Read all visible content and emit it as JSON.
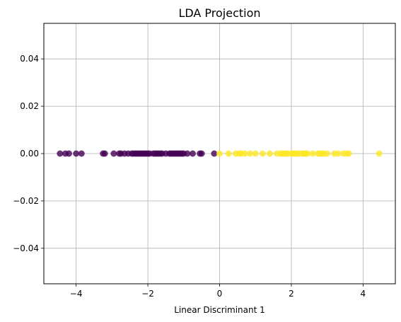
{
  "chart_data": {
    "type": "scatter",
    "title": "LDA Projection",
    "xlabel": "Linear Discriminant 1",
    "ylabel": "",
    "xlim": [
      -4.9,
      4.9
    ],
    "ylim": [
      -0.055,
      0.055
    ],
    "xticks": [
      -4,
      -2,
      0,
      2,
      4
    ],
    "xtick_labels": [
      "−4",
      "−2",
      "0",
      "2",
      "4"
    ],
    "yticks": [
      -0.04,
      -0.02,
      0.0,
      0.02,
      0.04
    ],
    "ytick_labels": [
      "−0.04",
      "−0.02",
      "0.00",
      "0.02",
      "0.04"
    ],
    "grid": true,
    "colors": {
      "class_0": "#440154",
      "class_1": "#fde725",
      "grid": "#b0b0b0"
    },
    "series": [
      {
        "color": "#440154",
        "x": [
          -4.45,
          -4.3,
          -4.2,
          -4.0,
          -3.85,
          -3.25,
          -3.2,
          -2.95,
          -2.8,
          -2.75,
          -2.65,
          -2.55,
          -2.45,
          -2.4,
          -2.35,
          -2.3,
          -2.25,
          -2.2,
          -2.15,
          -2.1,
          -2.05,
          -2.0,
          -1.95,
          -1.85,
          -1.8,
          -1.75,
          -1.7,
          -1.65,
          -1.6,
          -1.5,
          -1.4,
          -1.35,
          -1.3,
          -1.25,
          -1.2,
          -1.15,
          -1.1,
          -1.05,
          -1.0,
          -0.9,
          -0.75,
          -0.55,
          -0.5,
          -0.15
        ],
        "y": [
          0,
          0,
          0,
          0,
          0,
          0,
          0,
          0,
          0,
          0,
          0,
          0,
          0,
          0,
          0,
          0,
          0,
          0,
          0,
          0,
          0,
          0,
          0,
          0,
          0,
          0,
          0,
          0,
          0,
          0,
          0,
          0,
          0,
          0,
          0,
          0,
          0,
          0,
          0,
          0,
          0,
          0,
          0,
          0
        ]
      },
      {
        "color": "#fde725",
        "x": [
          0.0,
          0.25,
          0.45,
          0.55,
          0.6,
          0.7,
          0.85,
          1.0,
          1.2,
          1.4,
          1.6,
          1.7,
          1.75,
          1.8,
          1.85,
          1.9,
          2.0,
          2.05,
          2.1,
          2.15,
          2.2,
          2.3,
          2.35,
          2.4,
          2.45,
          2.6,
          2.75,
          2.8,
          2.85,
          2.9,
          3.0,
          3.2,
          3.3,
          3.45,
          3.55,
          3.6,
          4.45
        ],
        "y": [
          0,
          0,
          0,
          0,
          0,
          0,
          0,
          0,
          0,
          0,
          0,
          0,
          0,
          0,
          0,
          0,
          0,
          0,
          0,
          0,
          0,
          0,
          0,
          0,
          0,
          0,
          0,
          0,
          0,
          0,
          0,
          0,
          0,
          0,
          0,
          0,
          0
        ]
      }
    ]
  }
}
